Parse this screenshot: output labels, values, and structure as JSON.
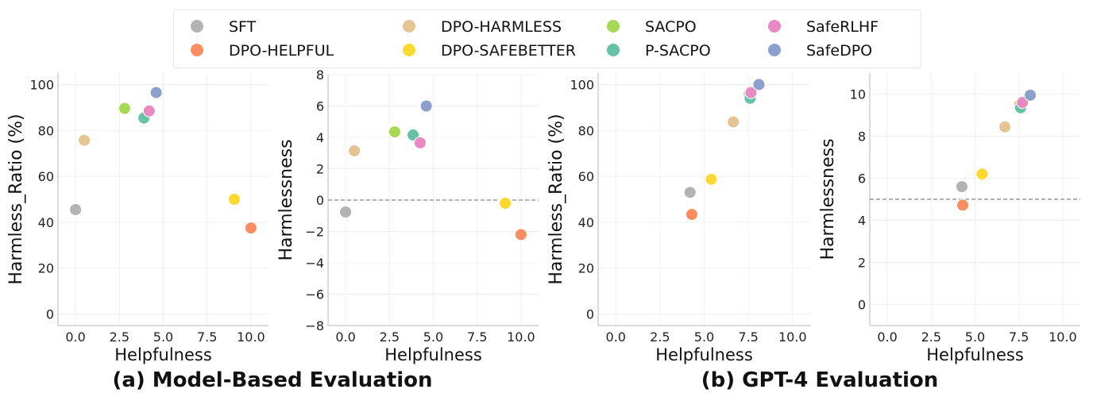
{
  "legend": {
    "placement": "top-center",
    "entries": [
      {
        "name": "SFT",
        "color": "#b3b3b3"
      },
      {
        "name": "DPO-HELPFUL",
        "color": "#fc8d62"
      },
      {
        "name": "DPO-HARMLESS",
        "color": "#e5c494"
      },
      {
        "name": "DPO-SAFEBETTER",
        "color": "#ffd92f"
      },
      {
        "name": "SACPO",
        "color": "#a6d854"
      },
      {
        "name": "P-SACPO",
        "color": "#66c2a5"
      },
      {
        "name": "SafeRLHF",
        "color": "#e78ac3"
      },
      {
        "name": "SafeDPO",
        "color": "#8da0cb"
      }
    ]
  },
  "captions": {
    "a": "(a) Model-Based Evaluation",
    "b": "(b) GPT-4 Evaluation"
  },
  "chart_data": [
    {
      "type": "scatter",
      "xlabel": "Helpfulness",
      "ylabel": "Harmless_Ratio (%)",
      "xlim": [
        -1,
        11
      ],
      "ylim": [
        -5,
        105
      ],
      "xticks": [
        "0.0",
        "2.5",
        "5.0",
        "7.5",
        "10.0"
      ],
      "yticks": [
        0,
        20,
        40,
        60,
        80,
        100
      ],
      "grid": true,
      "refline": null,
      "points": {
        "SFT": [
          0,
          45.5
        ],
        "DPO-HELPFUL": [
          10,
          37.5
        ],
        "DPO-HARMLESS": [
          0.5,
          75.7
        ],
        "DPO-SAFEBETTER": [
          9.05,
          50
        ],
        "SACPO": [
          2.8,
          89.6
        ],
        "P-SACPO": [
          3.9,
          85.4
        ],
        "SafeRLHF": [
          4.2,
          88.5
        ],
        "SafeDPO": [
          4.6,
          96.5
        ]
      }
    },
    {
      "type": "scatter",
      "xlabel": "Helpfulness",
      "ylabel": "Harmlessness",
      "xlim": [
        -1,
        11
      ],
      "ylim": [
        -8,
        8
      ],
      "xticks": [
        "0.0",
        "2.5",
        "5.0",
        "7.5",
        "10.0"
      ],
      "yticks": [
        -8,
        -6,
        -4,
        -2,
        0,
        2,
        4,
        6,
        8
      ],
      "grid": true,
      "refline": 0,
      "points": {
        "SFT": [
          0,
          -0.76
        ],
        "DPO-HELPFUL": [
          10,
          -2.2
        ],
        "DPO-HARMLESS": [
          0.5,
          3.14
        ],
        "DPO-SAFEBETTER": [
          9.1,
          -0.2
        ],
        "SACPO": [
          2.8,
          4.35
        ],
        "P-SACPO": [
          3.85,
          4.15
        ],
        "SafeRLHF": [
          4.25,
          3.65
        ],
        "SafeDPO": [
          4.6,
          6.0
        ]
      }
    },
    {
      "type": "scatter",
      "xlabel": "Helpfulness",
      "ylabel": "Harmless_Ratio (%)",
      "xlim": [
        -1,
        11
      ],
      "ylim": [
        -5,
        105
      ],
      "xticks": [
        "0.0",
        "2.5",
        "5.0",
        "7.5",
        "10.0"
      ],
      "yticks": [
        0,
        20,
        40,
        60,
        80,
        100
      ],
      "grid": true,
      "refline": null,
      "points": {
        "SFT": [
          4.2,
          53
        ],
        "DPO-HELPFUL": [
          4.3,
          43.4
        ],
        "DPO-HARMLESS": [
          6.65,
          83.7
        ],
        "DPO-SAFEBETTER": [
          5.4,
          58.7
        ],
        "SACPO": [
          7.55,
          96
        ],
        "P-SACPO": [
          7.6,
          94
        ],
        "SafeRLHF": [
          7.65,
          96.5
        ],
        "SafeDPO": [
          8.1,
          100
        ]
      }
    },
    {
      "type": "scatter",
      "xlabel": "Helpfulness",
      "ylabel": "Harmlessness",
      "xlim": [
        -1,
        11
      ],
      "ylim": [
        -1,
        11
      ],
      "xticks": [
        "0.0",
        "2.5",
        "5.0",
        "7.5",
        "10.0"
      ],
      "yticks": [
        0,
        2,
        4,
        6,
        8,
        10
      ],
      "grid": true,
      "refline": 5,
      "points": {
        "SFT": [
          4.25,
          5.6
        ],
        "DPO-HELPFUL": [
          4.3,
          4.72
        ],
        "DPO-HARMLESS": [
          6.7,
          8.44
        ],
        "DPO-SAFEBETTER": [
          5.4,
          6.2
        ],
        "SACPO": [
          7.55,
          9.5
        ],
        "P-SACPO": [
          7.6,
          9.35
        ],
        "SafeRLHF": [
          7.7,
          9.6
        ],
        "SafeDPO": [
          8.15,
          9.95
        ]
      }
    }
  ]
}
